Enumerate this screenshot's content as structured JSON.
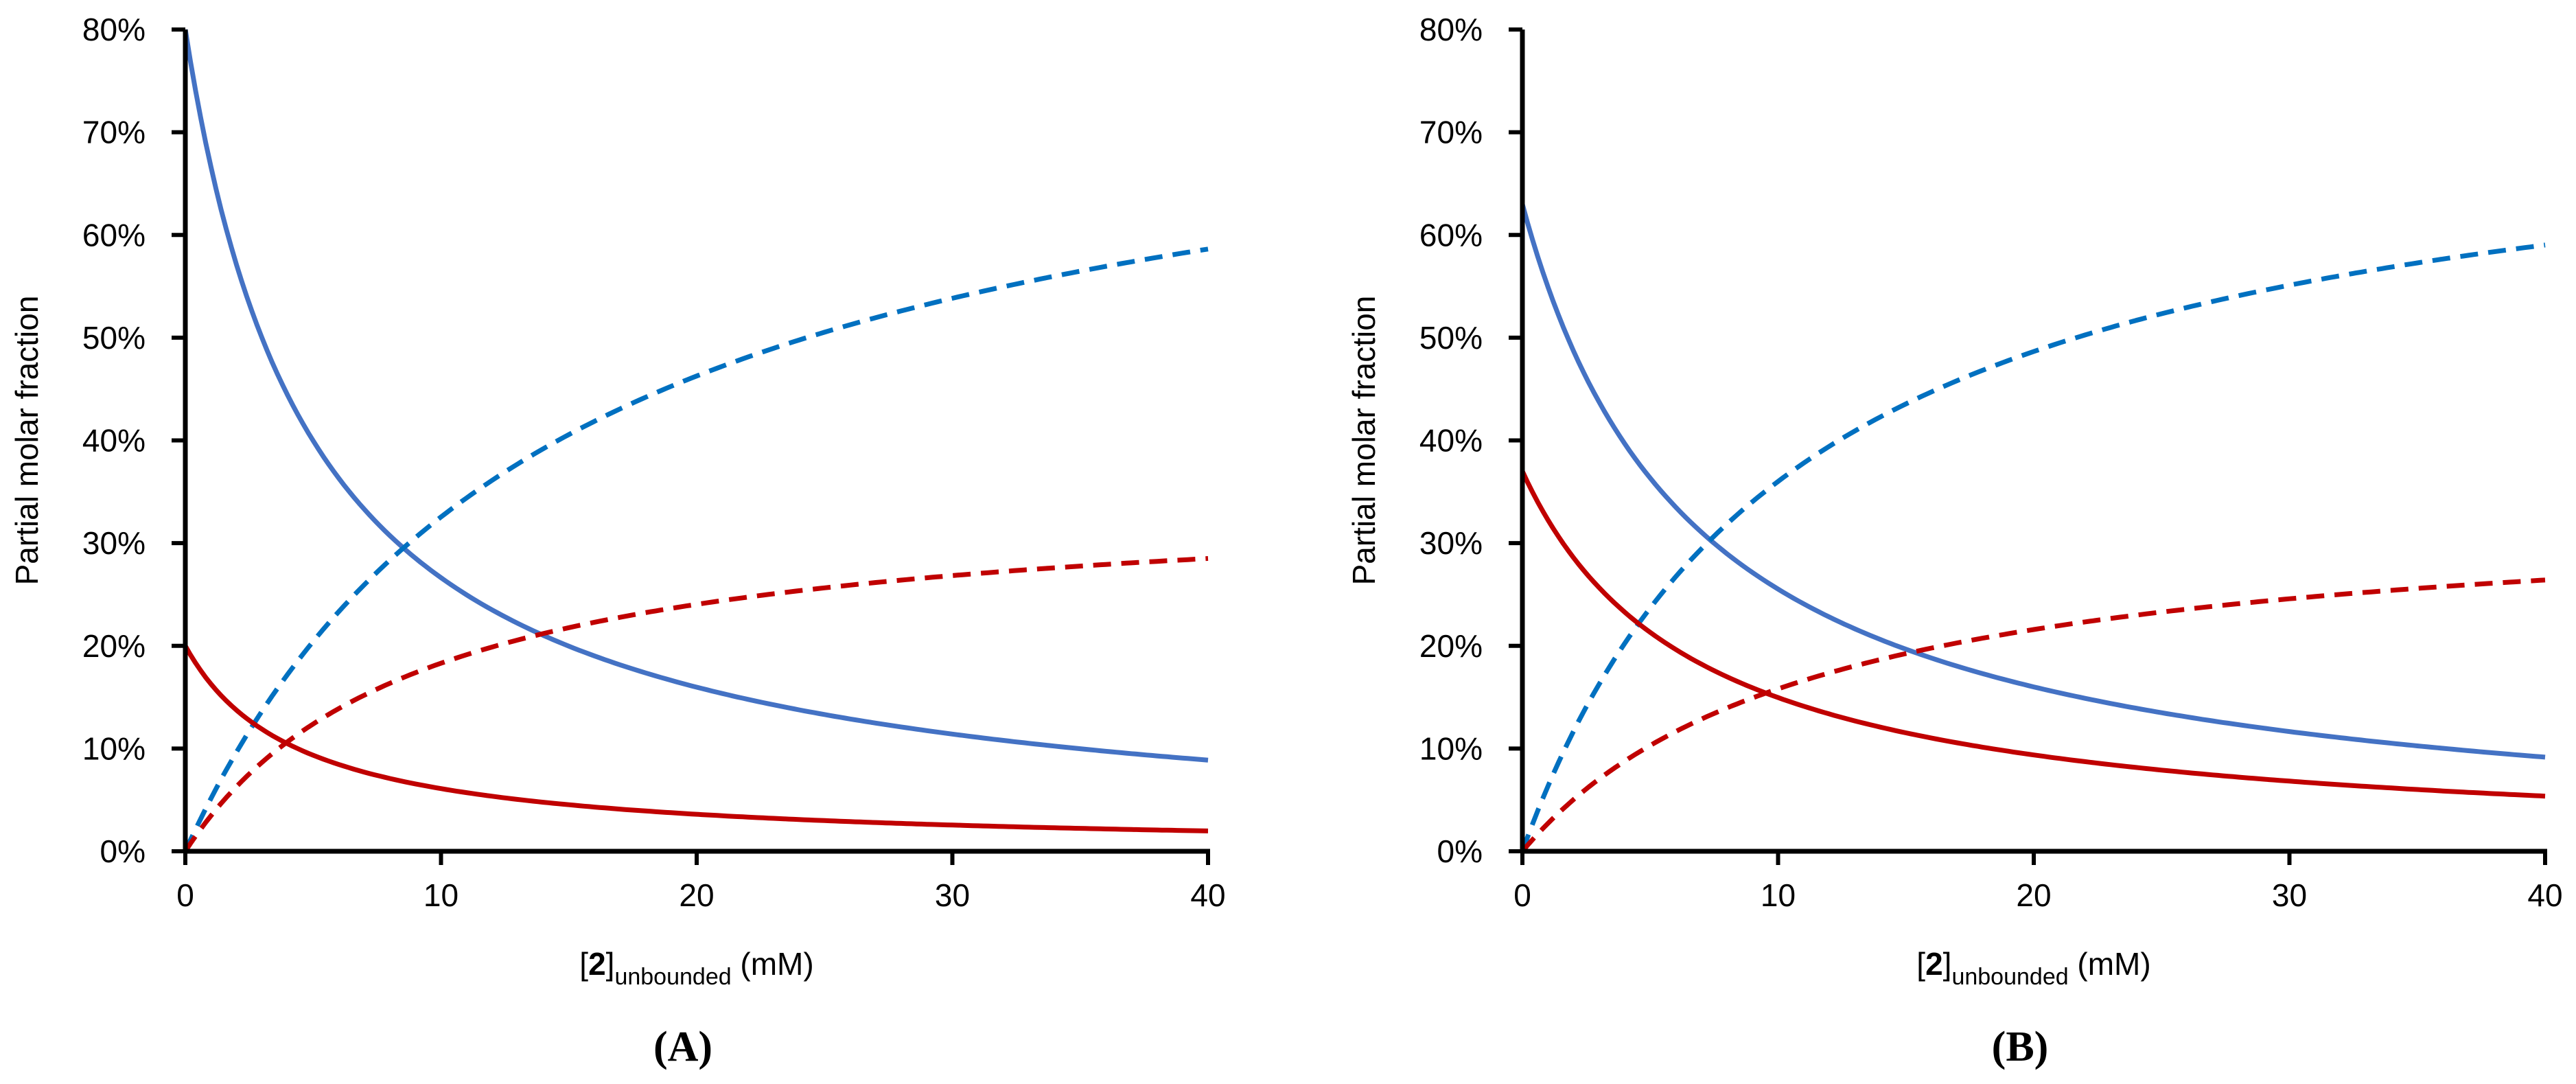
{
  "chart_data": [
    {
      "type": "line",
      "panel_label": "(A)",
      "ylabel": "Partial molar fraction",
      "xlabel": {
        "open": "[",
        "bold": "2",
        "close": "]",
        "sub": "unbounded",
        "unit": " (mM)"
      },
      "xlim": [
        0,
        40
      ],
      "ylim": [
        0,
        0.8
      ],
      "xticks": [
        0,
        10,
        20,
        30,
        40
      ],
      "xtick_labels": [
        "0",
        "10",
        "20",
        "30",
        "40"
      ],
      "yticks": [
        0,
        0.1,
        0.2,
        0.3,
        0.4,
        0.5,
        0.6,
        0.7,
        0.8
      ],
      "ytick_labels": [
        "0%",
        "10%",
        "20%",
        "30%",
        "40%",
        "50%",
        "60%",
        "70%",
        "80%"
      ],
      "series": [
        {
          "name": "blue-solid",
          "color": "#4472C4",
          "dash": false,
          "model": "decay",
          "y0": 0.8,
          "K": 4.99
        },
        {
          "name": "blue-dashed",
          "color": "#0070C0",
          "dash": true,
          "model": "saturation",
          "max": 0.8,
          "K": 14.58
        },
        {
          "name": "red-solid",
          "color": "#C00000",
          "dash": false,
          "model": "decay",
          "y0": 0.2,
          "K": 4.39
        },
        {
          "name": "red-dashed",
          "color": "#C00000",
          "dash": true,
          "model": "saturation",
          "max": 0.35,
          "K": 9.12
        }
      ]
    },
    {
      "type": "line",
      "panel_label": "(B)",
      "ylabel": "Partial molar fraction",
      "xlabel": {
        "open": "[",
        "bold": "2",
        "close": "]",
        "sub": "unbounded",
        "unit": " (mM)"
      },
      "xlim": [
        0,
        40
      ],
      "ylim": [
        0,
        0.8
      ],
      "xticks": [
        0,
        10,
        20,
        30,
        40
      ],
      "xtick_labels": [
        "0",
        "10",
        "20",
        "30",
        "40"
      ],
      "yticks": [
        0,
        0.1,
        0.2,
        0.3,
        0.4,
        0.5,
        0.6,
        0.7,
        0.8
      ],
      "ytick_labels": [
        "0%",
        "10%",
        "20%",
        "30%",
        "40%",
        "50%",
        "60%",
        "70%",
        "80%"
      ],
      "series": [
        {
          "name": "blue-solid",
          "color": "#4472C4",
          "dash": false,
          "model": "decay",
          "y0": 0.63,
          "K": 6.81
        },
        {
          "name": "blue-dashed",
          "color": "#0070C0",
          "dash": true,
          "model": "saturation",
          "max": 0.75,
          "K": 10.83
        },
        {
          "name": "red-solid",
          "color": "#C00000",
          "dash": false,
          "model": "decay",
          "y0": 0.37,
          "K": 6.79
        },
        {
          "name": "red-dashed",
          "color": "#C00000",
          "dash": true,
          "model": "saturation",
          "max": 0.34,
          "K": 11.5
        }
      ]
    }
  ]
}
